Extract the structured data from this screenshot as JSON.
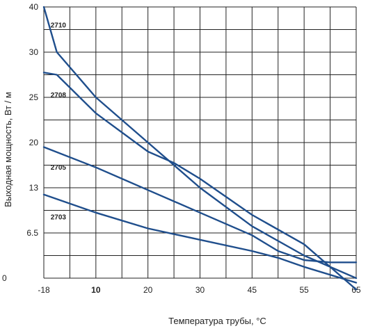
{
  "chart_data": {
    "type": "line",
    "title": "",
    "xlabel": "Температура трубы, °C",
    "ylabel": "Выходная мощность, Вт / м",
    "x_ticks": [
      "-18",
      "10",
      "20",
      "30",
      "45",
      "55",
      "65"
    ],
    "y_ticks": [
      "0",
      "6.5",
      "13",
      "20",
      "25",
      "30",
      "40"
    ],
    "grid": true,
    "line_color": "#1f4e8c",
    "grid_color": "#222222",
    "series": [
      {
        "name": "2710",
        "points": [
          [
            0.0,
            6.0
          ],
          [
            0.25,
            5.0
          ],
          [
            1.0,
            4.0
          ],
          [
            2.0,
            3.0
          ],
          [
            3.0,
            2.0
          ],
          [
            4.0,
            1.15
          ],
          [
            5.0,
            0.5
          ],
          [
            6.0,
            0.0
          ]
        ],
        "label_pos": [
          0.13,
          5.55
        ]
      },
      {
        "name": "2708",
        "points": [
          [
            0.0,
            4.55
          ],
          [
            0.25,
            4.5
          ],
          [
            1.0,
            3.65
          ],
          [
            2.0,
            2.8
          ],
          [
            2.5,
            2.55
          ],
          [
            3.0,
            2.2
          ],
          [
            4.0,
            1.4
          ],
          [
            5.0,
            0.75
          ],
          [
            6.0,
            -0.25
          ]
        ],
        "label_pos": [
          0.13,
          4.0
        ]
      },
      {
        "name": "2705",
        "points": [
          [
            0.0,
            2.9
          ],
          [
            1.0,
            2.45
          ],
          [
            2.0,
            1.95
          ],
          [
            3.0,
            1.45
          ],
          [
            4.0,
            0.95
          ],
          [
            4.5,
            0.6
          ],
          [
            5.0,
            0.4
          ],
          [
            5.5,
            0.35
          ],
          [
            6.0,
            0.35
          ]
        ],
        "label_pos": [
          0.13,
          2.4
        ]
      },
      {
        "name": "2703",
        "points": [
          [
            0.0,
            1.85
          ],
          [
            1.0,
            1.45
          ],
          [
            2.0,
            1.1
          ],
          [
            3.0,
            0.85
          ],
          [
            4.0,
            0.6
          ],
          [
            4.5,
            0.45
          ],
          [
            5.0,
            0.25
          ],
          [
            6.0,
            -0.1
          ]
        ],
        "label_pos": [
          0.13,
          1.3
        ]
      }
    ]
  }
}
